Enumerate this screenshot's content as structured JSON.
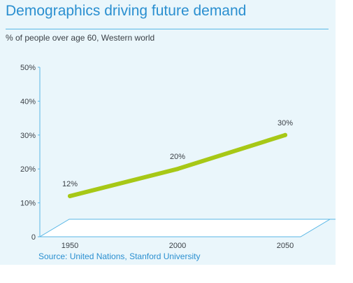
{
  "header": {
    "title": "Demographics driving future demand",
    "subtitle": "% of people over age 60, Western world"
  },
  "footer": {
    "source": "Source: United Nations, Stanford University"
  },
  "colors": {
    "title": "#2a8fd0",
    "line": "#a7c816",
    "axis": "#59b7e6",
    "background": "#eaf6fb"
  },
  "chart_data": {
    "type": "line",
    "title": "Demographics driving future demand",
    "subtitle": "% of people over age 60, Western world",
    "xlabel": "",
    "ylabel": "",
    "categories": [
      "1950",
      "2000",
      "2050"
    ],
    "series": [
      {
        "values": [
          12,
          20,
          30
        ],
        "labels": [
          "12%",
          "20%",
          "30%"
        ]
      }
    ],
    "ylim": [
      0,
      50
    ],
    "y_ticks": [
      0,
      10,
      20,
      30,
      40,
      50
    ],
    "y_tick_labels": [
      "0",
      "10%",
      "20%",
      "30%",
      "40%",
      "50%"
    ],
    "grid": false,
    "legend": "none"
  }
}
